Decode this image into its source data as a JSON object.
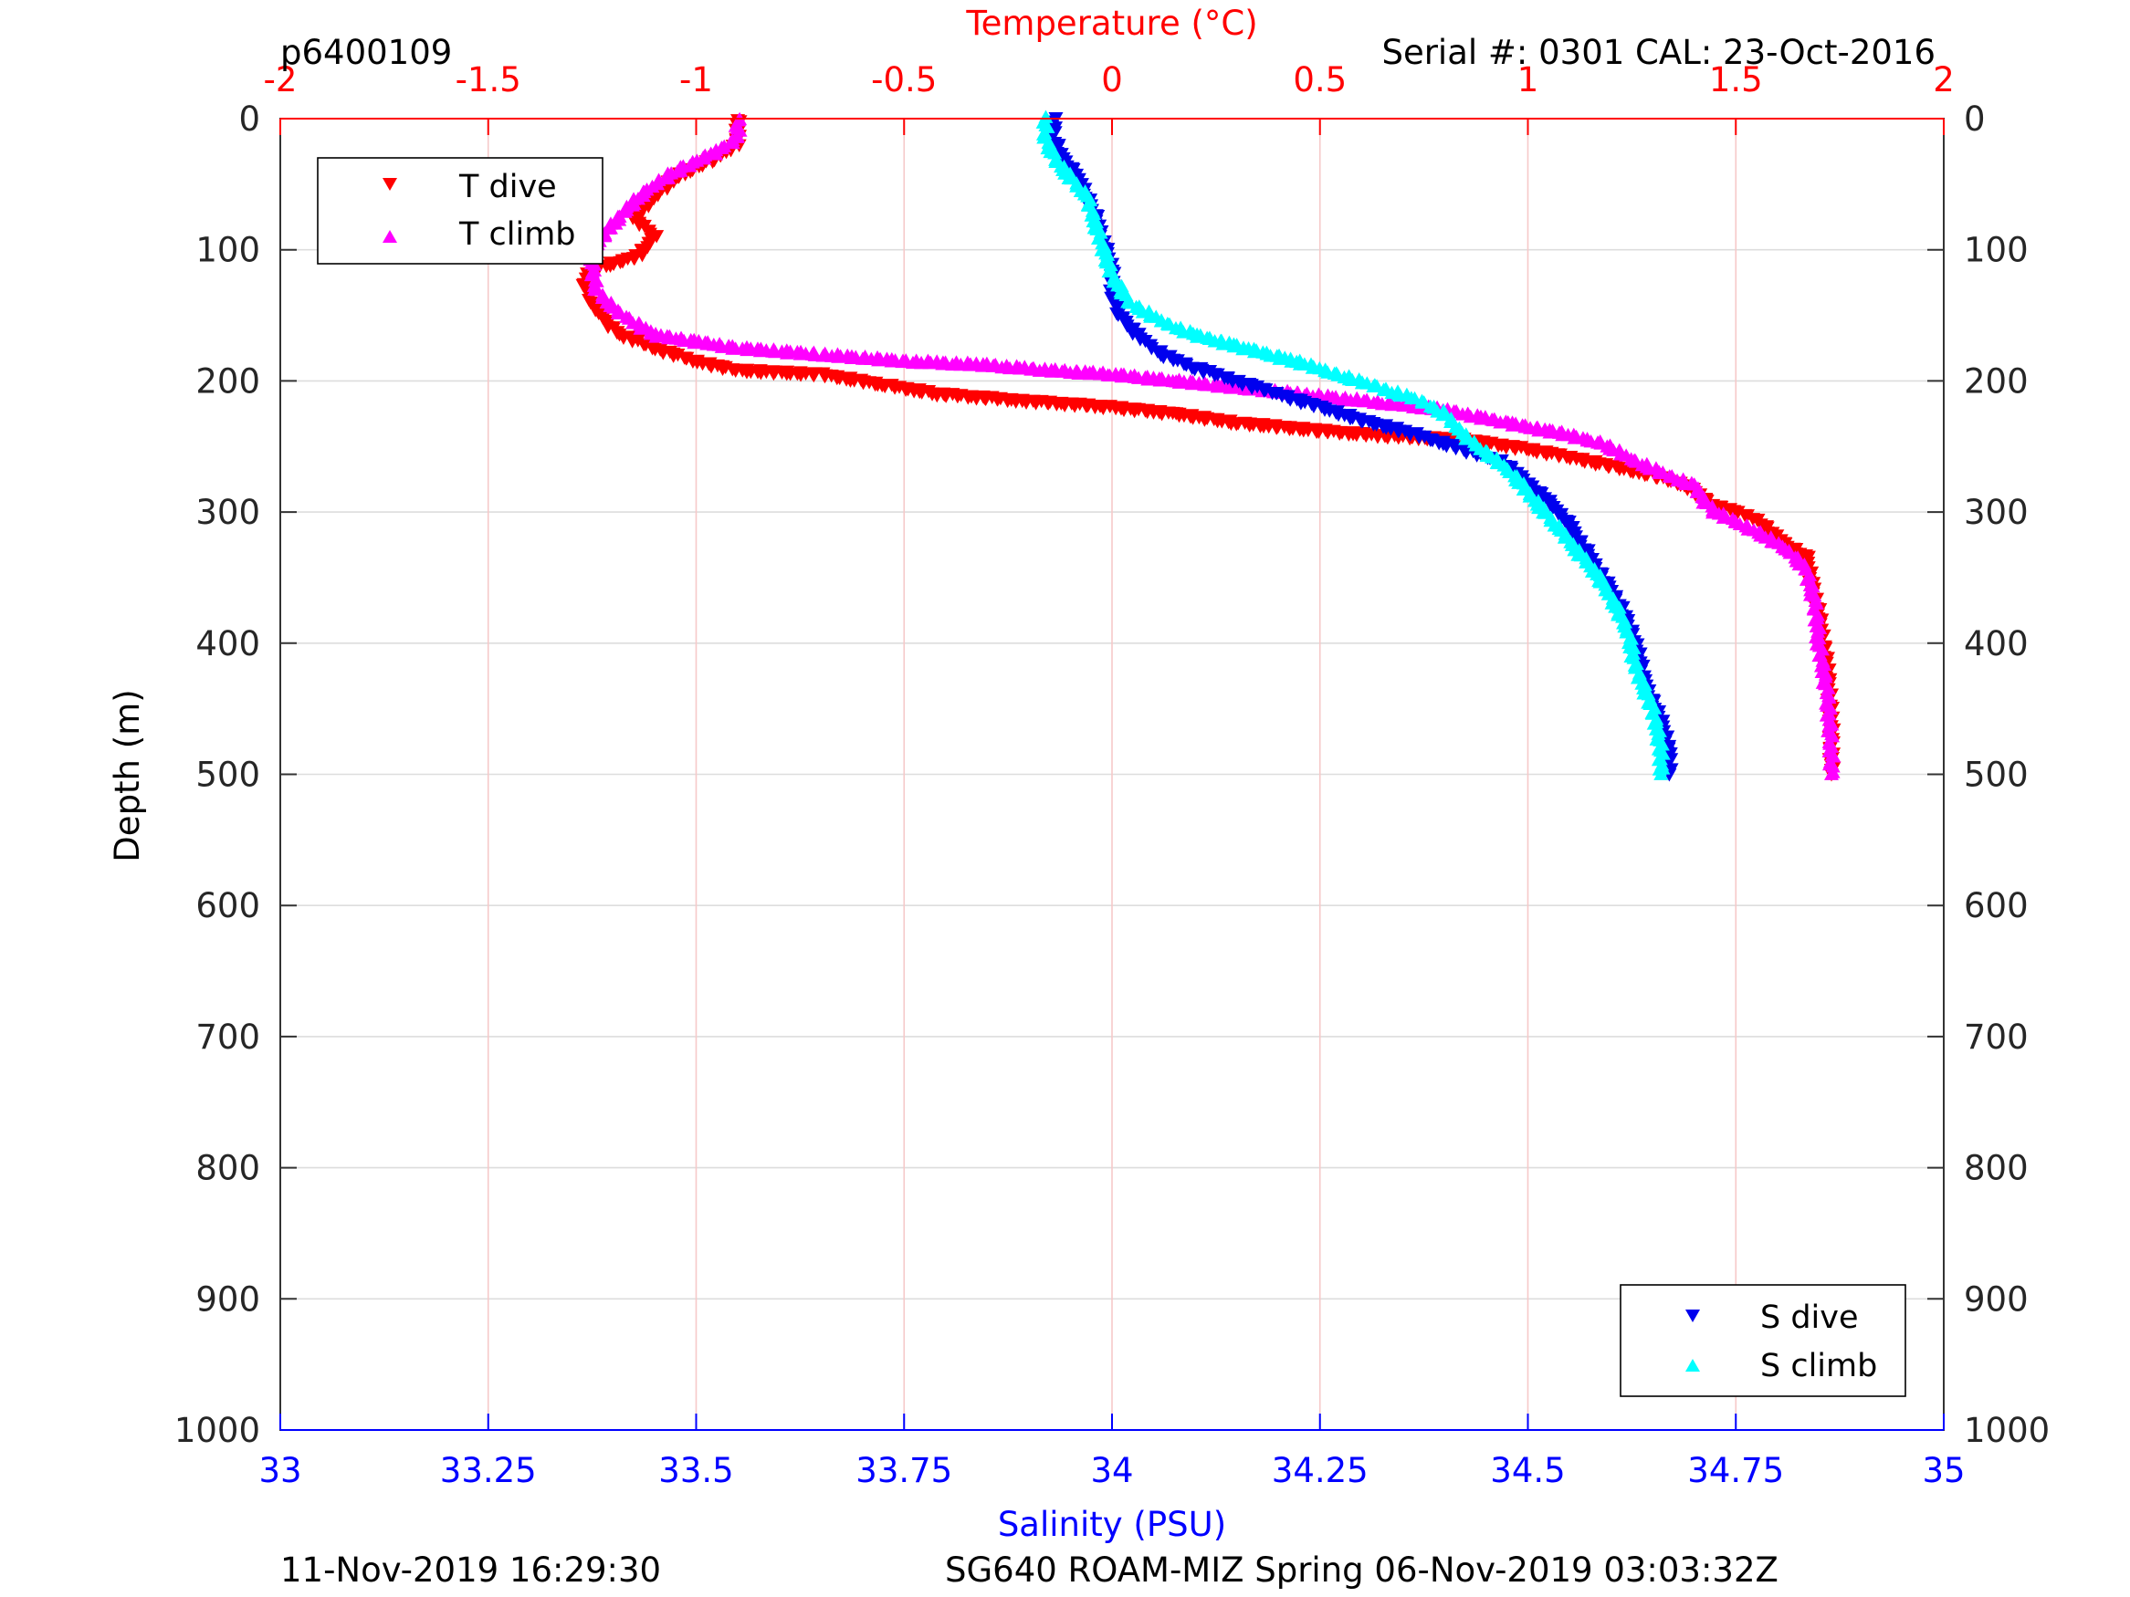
{
  "header": {
    "profile_id": "p6400109",
    "serial": "Serial #: 0301  CAL: 23-Oct-2016"
  },
  "footer": {
    "generated": "11-Nov-2019 16:29:30",
    "mission": "SG640 ROAM-MIZ Spring 06-Nov-2019 03:03:32Z"
  },
  "colors": {
    "temperature_axis": "#ff0000",
    "salinity_axis": "#0000ff",
    "t_dive": "#ff0000",
    "t_climb": "#ff00ff",
    "s_dive": "#0000ee",
    "s_climb": "#00ffff",
    "grid_depth": "#dddddd",
    "grid_temperature": "#f6c9c9"
  },
  "chart_data": {
    "type": "scatter",
    "xlabel_top": "Temperature (°C)",
    "xlabel_bottom": "Salinity (PSU)",
    "ylabel": "Depth (m)",
    "temperature_range": [
      -2,
      2
    ],
    "salinity_range": [
      33,
      35
    ],
    "depth_range": [
      0,
      1000
    ],
    "y_reversed": true,
    "temperature_ticks": [
      "-2",
      "-1.5",
      "-1",
      "-0.5",
      "0",
      "0.5",
      "1",
      "1.5",
      "2"
    ],
    "salinity_ticks": [
      "33",
      "33.25",
      "33.5",
      "33.75",
      "34",
      "34.25",
      "34.5",
      "34.75",
      "35"
    ],
    "depth_ticks": [
      "0",
      "100",
      "200",
      "300",
      "400",
      "500",
      "600",
      "700",
      "800",
      "900",
      "1000"
    ],
    "grid": {
      "depth": true,
      "temperature": true,
      "salinity": false
    },
    "legends": [
      {
        "placement": "top-left",
        "entries": [
          {
            "label": "T dive",
            "series": "T dive"
          },
          {
            "label": "T climb",
            "series": "T climb"
          }
        ]
      },
      {
        "placement": "bottom-right",
        "entries": [
          {
            "label": "S dive",
            "series": "S dive"
          },
          {
            "label": "S climb",
            "series": "S climb"
          }
        ]
      }
    ],
    "series": [
      {
        "name": "T dive",
        "axis": "temperature",
        "marker": "triangle-down",
        "color": "#ff0000",
        "points": [
          [
            -0.9,
            0
          ],
          [
            -0.9,
            20
          ],
          [
            -0.95,
            30
          ],
          [
            -1.05,
            45
          ],
          [
            -1.1,
            60
          ],
          [
            -1.15,
            75
          ],
          [
            -1.1,
            90
          ],
          [
            -1.14,
            105
          ],
          [
            -1.25,
            115
          ],
          [
            -1.27,
            125
          ],
          [
            -1.25,
            140
          ],
          [
            -1.22,
            155
          ],
          [
            -1.18,
            165
          ],
          [
            -1.1,
            175
          ],
          [
            -1.0,
            185
          ],
          [
            -0.9,
            192
          ],
          [
            -0.7,
            195
          ],
          [
            -0.55,
            203
          ],
          [
            -0.42,
            210
          ],
          [
            -0.22,
            215
          ],
          [
            0.0,
            220
          ],
          [
            0.15,
            225
          ],
          [
            0.3,
            232
          ],
          [
            0.5,
            238
          ],
          [
            0.65,
            242
          ],
          [
            0.85,
            245
          ],
          [
            1.0,
            252
          ],
          [
            1.1,
            258
          ],
          [
            1.2,
            265
          ],
          [
            1.3,
            272
          ],
          [
            1.38,
            280
          ],
          [
            1.45,
            295
          ],
          [
            1.55,
            305
          ],
          [
            1.6,
            320
          ],
          [
            1.67,
            335
          ],
          [
            1.68,
            350
          ],
          [
            1.7,
            380
          ],
          [
            1.72,
            420
          ],
          [
            1.73,
            460
          ],
          [
            1.73,
            500
          ]
        ]
      },
      {
        "name": "T climb",
        "axis": "temperature",
        "marker": "triangle-up",
        "color": "#ff00ff",
        "points": [
          [
            -0.9,
            0
          ],
          [
            -0.9,
            15
          ],
          [
            -0.95,
            25
          ],
          [
            -1.05,
            40
          ],
          [
            -1.12,
            55
          ],
          [
            -1.17,
            70
          ],
          [
            -1.21,
            85
          ],
          [
            -1.25,
            100
          ],
          [
            -1.25,
            115
          ],
          [
            -1.24,
            130
          ],
          [
            -1.2,
            145
          ],
          [
            -1.1,
            165
          ],
          [
            -0.9,
            175
          ],
          [
            -0.7,
            180
          ],
          [
            -0.5,
            185
          ],
          [
            -0.3,
            188
          ],
          [
            -0.15,
            192
          ],
          [
            0.0,
            195
          ],
          [
            0.15,
            200
          ],
          [
            0.3,
            205
          ],
          [
            0.45,
            210
          ],
          [
            0.6,
            215
          ],
          [
            0.8,
            222
          ],
          [
            0.95,
            232
          ],
          [
            1.08,
            240
          ],
          [
            1.18,
            248
          ],
          [
            1.25,
            260
          ],
          [
            1.32,
            270
          ],
          [
            1.4,
            280
          ],
          [
            1.42,
            290
          ],
          [
            1.45,
            300
          ],
          [
            1.55,
            315
          ],
          [
            1.63,
            330
          ],
          [
            1.67,
            345
          ],
          [
            1.69,
            370
          ],
          [
            1.7,
            400
          ],
          [
            1.72,
            440
          ],
          [
            1.73,
            480
          ],
          [
            1.73,
            500
          ]
        ]
      },
      {
        "name": "S dive",
        "axis": "salinity",
        "marker": "triangle-down",
        "color": "#0000ee",
        "points": [
          [
            33.93,
            0
          ],
          [
            33.93,
            15
          ],
          [
            33.94,
            30
          ],
          [
            33.96,
            45
          ],
          [
            33.97,
            60
          ],
          [
            33.98,
            75
          ],
          [
            33.99,
            95
          ],
          [
            34.0,
            115
          ],
          [
            34.0,
            135
          ],
          [
            34.01,
            150
          ],
          [
            34.03,
            165
          ],
          [
            34.06,
            180
          ],
          [
            34.1,
            190
          ],
          [
            34.15,
            200
          ],
          [
            34.2,
            210
          ],
          [
            34.25,
            220
          ],
          [
            34.3,
            230
          ],
          [
            34.36,
            240
          ],
          [
            34.42,
            252
          ],
          [
            34.47,
            262
          ],
          [
            34.5,
            278
          ],
          [
            34.53,
            295
          ],
          [
            34.55,
            310
          ],
          [
            34.57,
            330
          ],
          [
            34.59,
            350
          ],
          [
            34.61,
            370
          ],
          [
            34.63,
            400
          ],
          [
            34.64,
            430
          ],
          [
            34.66,
            460
          ],
          [
            34.67,
            480
          ],
          [
            34.67,
            500
          ]
        ]
      },
      {
        "name": "S climb",
        "axis": "salinity",
        "marker": "triangle-up",
        "color": "#00ffff",
        "points": [
          [
            33.92,
            0
          ],
          [
            33.92,
            15
          ],
          [
            33.93,
            30
          ],
          [
            33.95,
            45
          ],
          [
            33.97,
            60
          ],
          [
            33.98,
            80
          ],
          [
            33.99,
            100
          ],
          [
            34.0,
            120
          ],
          [
            34.02,
            140
          ],
          [
            34.06,
            155
          ],
          [
            34.1,
            165
          ],
          [
            34.16,
            175
          ],
          [
            34.22,
            185
          ],
          [
            34.27,
            195
          ],
          [
            34.32,
            205
          ],
          [
            34.37,
            215
          ],
          [
            34.4,
            225
          ],
          [
            34.42,
            240
          ],
          [
            34.45,
            255
          ],
          [
            34.48,
            270
          ],
          [
            34.5,
            285
          ],
          [
            34.52,
            300
          ],
          [
            34.54,
            315
          ],
          [
            34.56,
            330
          ],
          [
            34.58,
            345
          ],
          [
            34.6,
            365
          ],
          [
            34.62,
            390
          ],
          [
            34.63,
            420
          ],
          [
            34.65,
            450
          ],
          [
            34.66,
            480
          ],
          [
            34.66,
            500
          ]
        ]
      }
    ]
  }
}
